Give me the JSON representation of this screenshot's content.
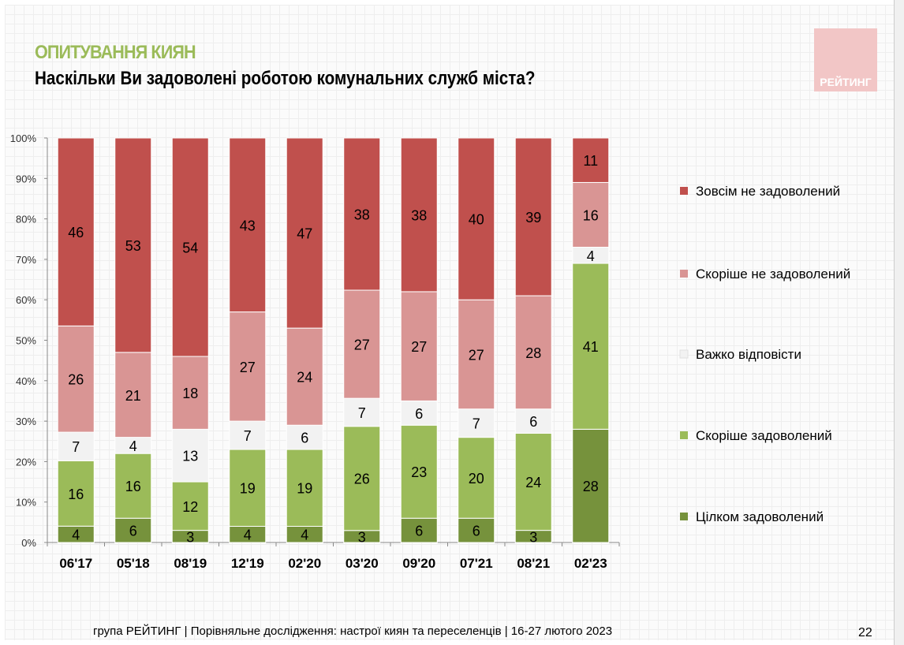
{
  "header": {
    "kicker": "ОПИТУВАННЯ КИЯН",
    "title": "Наскільки Ви задоволені роботою комунальних служб міста?",
    "logo": "РЕЙТИНГ"
  },
  "footer": {
    "text": "група РЕЙТИНГ | Порівняльне дослідження: настрої киян та переселенців | 16-27 лютого 2023",
    "page": "22"
  },
  "chart_data": {
    "type": "bar",
    "stacked": true,
    "normalized": true,
    "categories": [
      "06'17",
      "05'18",
      "08'19",
      "12'19",
      "02'20",
      "03'20",
      "09'20",
      "07'21",
      "08'21",
      "02'23"
    ],
    "yticks": [
      "0%",
      "10%",
      "20%",
      "30%",
      "40%",
      "50%",
      "60%",
      "70%",
      "80%",
      "90%",
      "100%"
    ],
    "ylim": [
      0,
      100
    ],
    "legend_position": "right",
    "series": [
      {
        "name": "Цілком задоволений",
        "color": "#76923c",
        "values": [
          4,
          6,
          3,
          4,
          4,
          3,
          6,
          6,
          3,
          28
        ]
      },
      {
        "name": "Скоріше задоволений",
        "color": "#9bbb59",
        "values": [
          16,
          16,
          12,
          19,
          19,
          26,
          23,
          20,
          24,
          41
        ]
      },
      {
        "name": "Важко відповісти",
        "color": "#f2f2f2",
        "values": [
          7,
          4,
          13,
          7,
          6,
          7,
          6,
          7,
          6,
          4
        ]
      },
      {
        "name": "Скоріше не задоволений",
        "color": "#d99594",
        "values": [
          26,
          21,
          18,
          27,
          24,
          27,
          27,
          27,
          28,
          16
        ]
      },
      {
        "name": "Зовсім не задоволений",
        "color": "#c0504d",
        "values": [
          46,
          53,
          54,
          43,
          47,
          38,
          38,
          40,
          39,
          11
        ]
      }
    ]
  }
}
